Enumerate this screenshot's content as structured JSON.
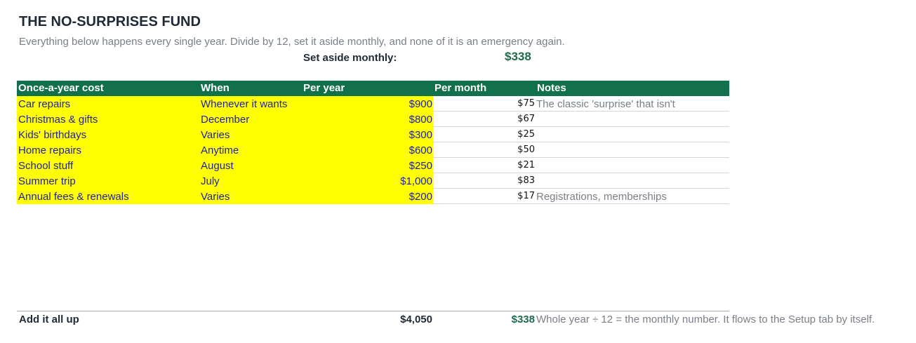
{
  "title": "THE NO-SURPRISES FUND",
  "subtitle": "Everything below happens every single year. Divide by 12, set it aside monthly, and none of it is an emergency again.",
  "set_aside": {
    "label": "Set aside monthly:",
    "value": "$338"
  },
  "table": {
    "headers": {
      "cost": "Once-a-year cost",
      "when": "When",
      "per_year": "Per year",
      "per_month": "Per month",
      "notes": "Notes"
    },
    "rows": [
      {
        "name": "Car repairs",
        "when": "Whenever it wants",
        "per_year": "$900",
        "per_month": "$75",
        "note": "The classic 'surprise' that isn't"
      },
      {
        "name": "Christmas & gifts",
        "when": "December",
        "per_year": "$800",
        "per_month": "$67",
        "note": ""
      },
      {
        "name": "Kids' birthdays",
        "when": "Varies",
        "per_year": "$300",
        "per_month": "$25",
        "note": ""
      },
      {
        "name": "Home repairs",
        "when": "Anytime",
        "per_year": "$600",
        "per_month": "$50",
        "note": ""
      },
      {
        "name": "School stuff",
        "when": "August",
        "per_year": "$250",
        "per_month": "$21",
        "note": ""
      },
      {
        "name": "Summer trip",
        "when": "July",
        "per_year": "$1,000",
        "per_month": "$83",
        "note": ""
      },
      {
        "name": "Annual fees & renewals",
        "when": "Varies",
        "per_year": "$200",
        "per_month": "$17",
        "note": "Registrations, memberships"
      }
    ]
  },
  "totals": {
    "label": "Add it all up",
    "per_year": "$4,050",
    "per_month": "$338",
    "note": "Whole year ÷ 12 = the monthly number. It flows to the Setup tab by itself."
  },
  "colors": {
    "header_green": "#13704d",
    "highlight_yellow": "#ffff00",
    "accent_green": "#1e6b4b",
    "input_blue": "#1f1fa0"
  }
}
